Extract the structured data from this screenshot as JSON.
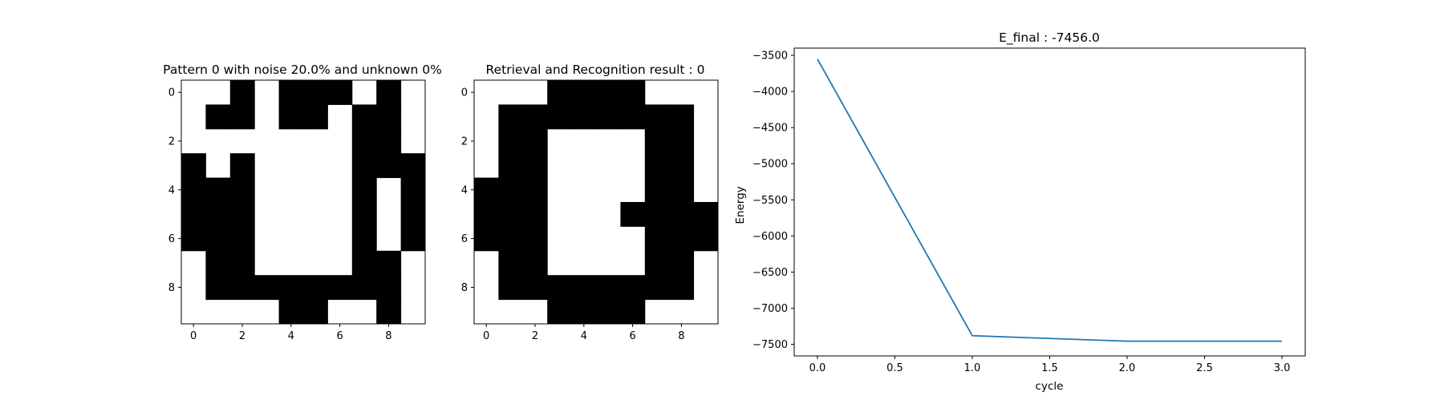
{
  "chart_data": [
    {
      "type": "heatmap",
      "title": "Pattern 0 with noise 20.0% and unknown 0%",
      "colors": {
        "on": "#000000",
        "off": "#ffffff"
      },
      "xticks": [
        "0",
        "2",
        "4",
        "6",
        "8"
      ],
      "yticks": [
        "0",
        "2",
        "4",
        "6",
        "8"
      ],
      "grid": [
        [
          0,
          0,
          1,
          0,
          1,
          1,
          1,
          0,
          1,
          0
        ],
        [
          0,
          1,
          1,
          0,
          1,
          1,
          0,
          1,
          1,
          0
        ],
        [
          0,
          0,
          0,
          0,
          0,
          0,
          0,
          1,
          1,
          0
        ],
        [
          1,
          0,
          1,
          0,
          0,
          0,
          0,
          1,
          1,
          1
        ],
        [
          1,
          1,
          1,
          0,
          0,
          0,
          0,
          1,
          0,
          1
        ],
        [
          1,
          1,
          1,
          0,
          0,
          0,
          0,
          1,
          0,
          1
        ],
        [
          1,
          1,
          1,
          0,
          0,
          0,
          0,
          1,
          0,
          1
        ],
        [
          0,
          1,
          1,
          0,
          0,
          0,
          0,
          1,
          1,
          0
        ],
        [
          0,
          1,
          1,
          1,
          1,
          1,
          1,
          1,
          1,
          0
        ],
        [
          0,
          0,
          0,
          0,
          1,
          1,
          0,
          0,
          1,
          0
        ]
      ]
    },
    {
      "type": "heatmap",
      "title": "Retrieval and Recognition result : 0",
      "colors": {
        "on": "#000000",
        "off": "#ffffff"
      },
      "xticks": [
        "0",
        "2",
        "4",
        "6",
        "8"
      ],
      "yticks": [
        "0",
        "2",
        "4",
        "6",
        "8"
      ],
      "grid": [
        [
          0,
          0,
          0,
          1,
          1,
          1,
          1,
          0,
          0,
          0
        ],
        [
          0,
          1,
          1,
          1,
          1,
          1,
          1,
          1,
          1,
          0
        ],
        [
          0,
          1,
          1,
          0,
          0,
          0,
          0,
          1,
          1,
          0
        ],
        [
          0,
          1,
          1,
          0,
          0,
          0,
          0,
          1,
          1,
          0
        ],
        [
          1,
          1,
          1,
          0,
          0,
          0,
          0,
          1,
          1,
          0
        ],
        [
          1,
          1,
          1,
          0,
          0,
          0,
          1,
          1,
          1,
          1
        ],
        [
          1,
          1,
          1,
          0,
          0,
          0,
          0,
          1,
          1,
          1
        ],
        [
          0,
          1,
          1,
          0,
          0,
          0,
          0,
          1,
          1,
          0
        ],
        [
          0,
          1,
          1,
          1,
          1,
          1,
          1,
          1,
          1,
          0
        ],
        [
          0,
          0,
          0,
          1,
          1,
          1,
          1,
          0,
          0,
          0
        ]
      ]
    },
    {
      "type": "line",
      "title": "E_final : -7456.0",
      "xlabel": "cycle",
      "ylabel": "Energy",
      "x": [
        0,
        1,
        2,
        3
      ],
      "series": [
        {
          "values": [
            -3552,
            -7380,
            -7456,
            -7456
          ],
          "color": "#1f77b4"
        }
      ],
      "xlim": [
        -0.15,
        3.15
      ],
      "ylim": [
        -7660,
        -3400
      ],
      "xticks": [
        0.0,
        0.5,
        1.0,
        1.5,
        2.0,
        2.5,
        3.0
      ],
      "xtick_labels": [
        "0.0",
        "0.5",
        "1.0",
        "1.5",
        "2.0",
        "2.5",
        "3.0"
      ],
      "yticks": [
        -3500,
        -4000,
        -4500,
        -5000,
        -5500,
        -6000,
        -6500,
        -7000,
        -7500
      ],
      "ytick_labels": [
        "−3500",
        "−4000",
        "−4500",
        "−5000",
        "−5500",
        "−6000",
        "−6500",
        "−7000",
        "−7500"
      ],
      "grid": false
    }
  ]
}
